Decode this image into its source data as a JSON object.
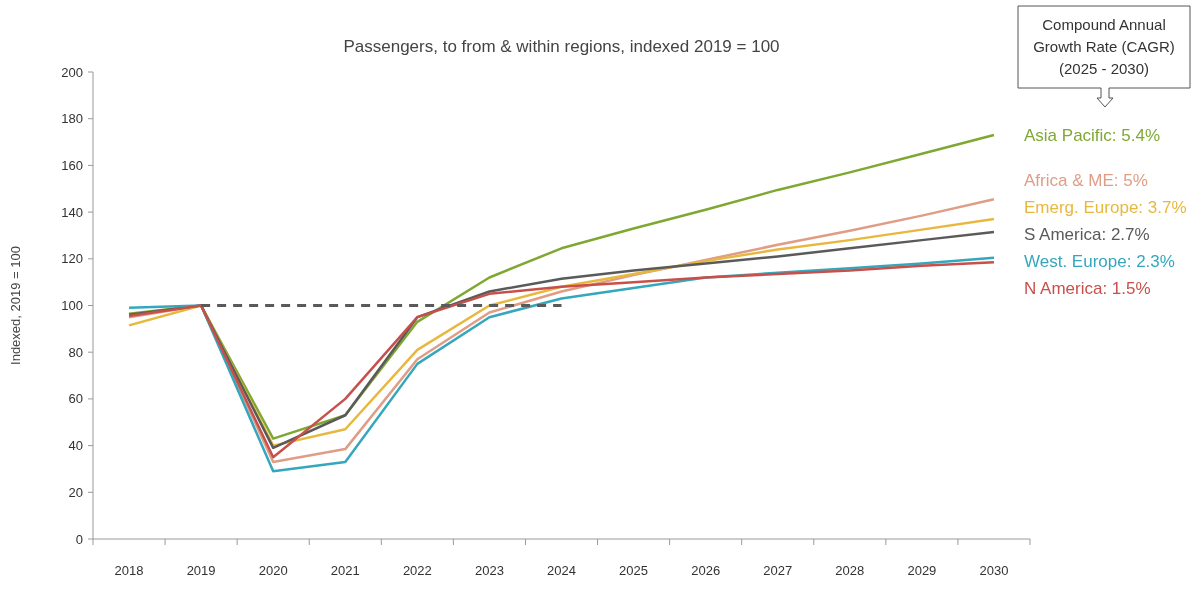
{
  "chart_data": {
    "type": "line",
    "title": "Passengers, to from & within regions, indexed 2019 = 100",
    "ylabel": "Indexed, 2019 = 100",
    "categories": [
      "2018",
      "2019",
      "2020",
      "2021",
      "2022",
      "2023",
      "2024",
      "2025",
      "2026",
      "2027",
      "2028",
      "2029",
      "2030"
    ],
    "ylim": [
      0,
      200
    ],
    "yticks": [
      0,
      20,
      40,
      60,
      80,
      100,
      120,
      140,
      160,
      180,
      200
    ],
    "grid": false,
    "line_style": "solid",
    "marker": "none",
    "annotations": [
      "Compound Annual\nGrowth Rate (CAGR)\n(2025 - 2030)"
    ],
    "series": [
      {
        "name": "Asia Pacific: 5.4%",
        "color": "#7fa832",
        "values": [
          96.5,
          100,
          43,
          53,
          93,
          112,
          124.5,
          133,
          141,
          149.5,
          157,
          165,
          173
        ]
      },
      {
        "name": "Africa & ME: 5%",
        "color": "#df9d86",
        "values": [
          95,
          100,
          33,
          38.5,
          77,
          97,
          106,
          113,
          119.5,
          126,
          132,
          138.5,
          145.5
        ]
      },
      {
        "name": "Emerg. Europe: 3.7%",
        "color": "#e8b83e",
        "values": [
          91.5,
          100,
          40,
          47,
          81,
          100,
          108,
          113.5,
          119,
          124,
          128,
          132.5,
          137
        ]
      },
      {
        "name": "S America: 2.7%",
        "color": "#5a5a5a",
        "values": [
          96,
          100,
          39,
          53,
          95,
          106,
          111.5,
          115,
          118,
          121,
          124.5,
          128,
          131.5
        ]
      },
      {
        "name": "West. Europe: 2.3%",
        "color": "#35a7bd",
        "values": [
          99,
          100,
          29,
          33,
          75,
          95,
          103,
          107.5,
          112,
          114,
          116,
          118,
          120.5
        ]
      },
      {
        "name": "N America: 1.5%",
        "color": "#c8504a",
        "values": [
          95.5,
          100,
          35,
          60,
          95,
          105,
          108,
          110,
          112,
          113.5,
          115,
          117,
          118.5
        ]
      },
      {
        "color": "#5a5a5a",
        "line_style": "dashed",
        "values": [
          null,
          100,
          100,
          100,
          100,
          100,
          100,
          null,
          null,
          null,
          null,
          null,
          null
        ]
      }
    ]
  }
}
